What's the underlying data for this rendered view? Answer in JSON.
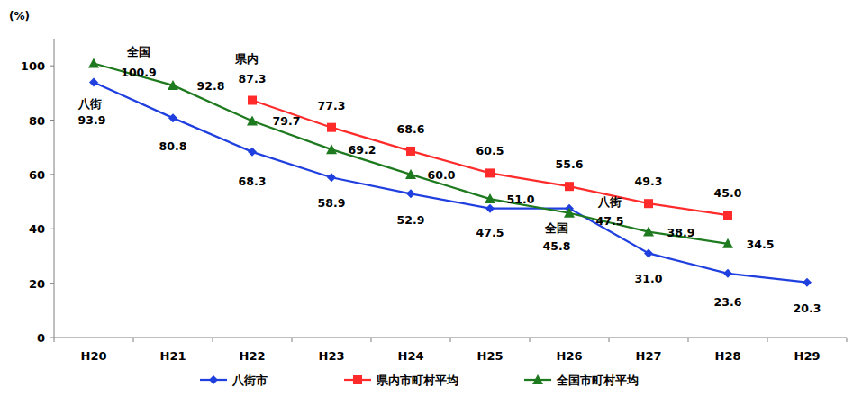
{
  "chart_data": {
    "type": "line",
    "y_label": "(%)",
    "categories": [
      "H20",
      "H21",
      "H22",
      "H23",
      "H24",
      "H25",
      "H26",
      "H27",
      "H28",
      "H29"
    ],
    "series": [
      {
        "name": "八街市",
        "color": "#1f3fdf",
        "marker": "diamond",
        "values": [
          93.9,
          80.8,
          68.3,
          58.9,
          52.9,
          47.5,
          47.5,
          31.0,
          23.6,
          20.3
        ],
        "value_labels": [
          "93.9",
          "80.8",
          "68.3",
          "58.9",
          "52.9",
          "47.5",
          "47.5",
          "31.0",
          "23.6",
          "20.3"
        ]
      },
      {
        "name": "県内市町村平均",
        "color": "#ff2b2b",
        "marker": "square",
        "values": [
          null,
          null,
          87.3,
          77.3,
          68.6,
          60.5,
          55.6,
          49.3,
          45.0,
          null
        ],
        "value_labels": [
          null,
          null,
          "87.3",
          "77.3",
          "68.6",
          "60.5",
          "55.6",
          "49.3",
          "45.0",
          null
        ]
      },
      {
        "name": "全国市町村平均",
        "color": "#1e7a1e",
        "marker": "triangle",
        "values": [
          100.9,
          92.8,
          79.7,
          69.2,
          60.0,
          51.0,
          45.8,
          38.9,
          34.5,
          null
        ],
        "value_labels": [
          "100.9",
          "92.8",
          "79.7",
          "69.2",
          "60.0",
          "51.0",
          "45.8",
          "38.9",
          "34.5",
          null
        ]
      }
    ],
    "annotations": [
      {
        "text": "全国",
        "series": "全国市町村平均",
        "x": "H20"
      },
      {
        "text": "県内",
        "series": "県内市町村平均",
        "x": "H22"
      },
      {
        "text": "八街",
        "series": "八街市",
        "x": "H20"
      },
      {
        "text": "八街",
        "series": "八街市",
        "x": "H26"
      },
      {
        "text": "全国",
        "series": "全国市町村平均",
        "x": "H26"
      }
    ],
    "ylim": [
      0,
      110
    ],
    "yticks": [
      0,
      20,
      40,
      60,
      80,
      100
    ],
    "grid": false,
    "legend": "bottom",
    "data_labels": true
  }
}
